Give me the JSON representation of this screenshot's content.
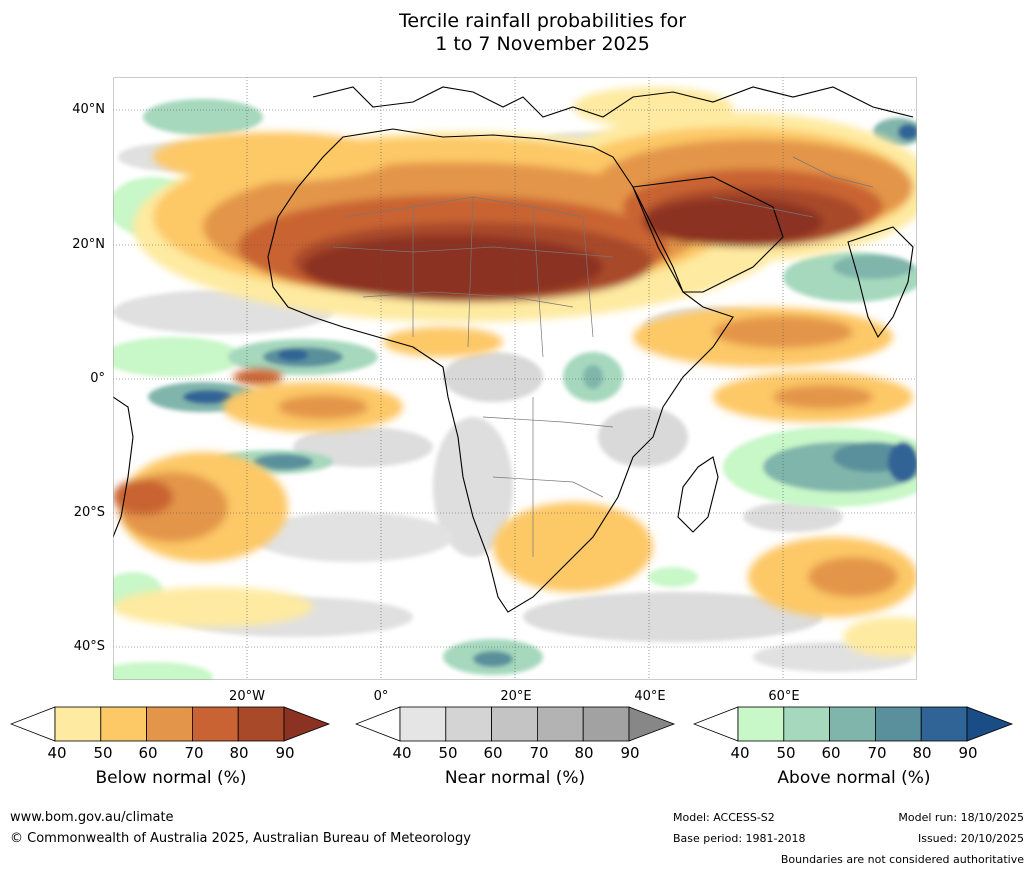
{
  "title": {
    "line1": "Tercile rainfall probabilities for",
    "line2": "1 to 7 November 2025"
  },
  "map": {
    "lat_labels": [
      "40°N",
      "20°N",
      "0°",
      "20°S",
      "40°S"
    ],
    "lon_labels": [
      "20°W",
      "0°",
      "20°E",
      "40°E",
      "60°E"
    ]
  },
  "legends": {
    "below": {
      "title": "Below normal (%)",
      "ticks": [
        "40",
        "50",
        "60",
        "70",
        "80",
        "90"
      ],
      "colors": [
        "#ffffff",
        "#feeaa0",
        "#fdc866",
        "#e39549",
        "#c96333",
        "#a84a2a",
        "#8c3222"
      ]
    },
    "near": {
      "title": "Near normal (%)",
      "ticks": [
        "40",
        "50",
        "60",
        "70",
        "80",
        "90"
      ],
      "colors": [
        "#ffffff",
        "#e5e5e5",
        "#d4d4d4",
        "#c4c4c4",
        "#b3b3b3",
        "#a2a2a2",
        "#878787"
      ]
    },
    "above": {
      "title": "Above normal (%)",
      "ticks": [
        "40",
        "50",
        "60",
        "70",
        "80",
        "90"
      ],
      "colors": [
        "#ffffff",
        "#c8f7c8",
        "#a5d8bd",
        "#80b5ab",
        "#5a909c",
        "#306496",
        "#1a4d86"
      ]
    }
  },
  "footer": {
    "website": "www.bom.gov.au/climate",
    "copyright": "© Commonwealth of Australia 2025, Australian Bureau of Meteorology",
    "model": "Model: ACCESS-S2",
    "base_period": "Base period: 1981-2018",
    "model_run": "Model run: 18/10/2025",
    "issued": "Issued: 20/10/2025",
    "disclaimer": "Boundaries are not considered authoritative"
  }
}
